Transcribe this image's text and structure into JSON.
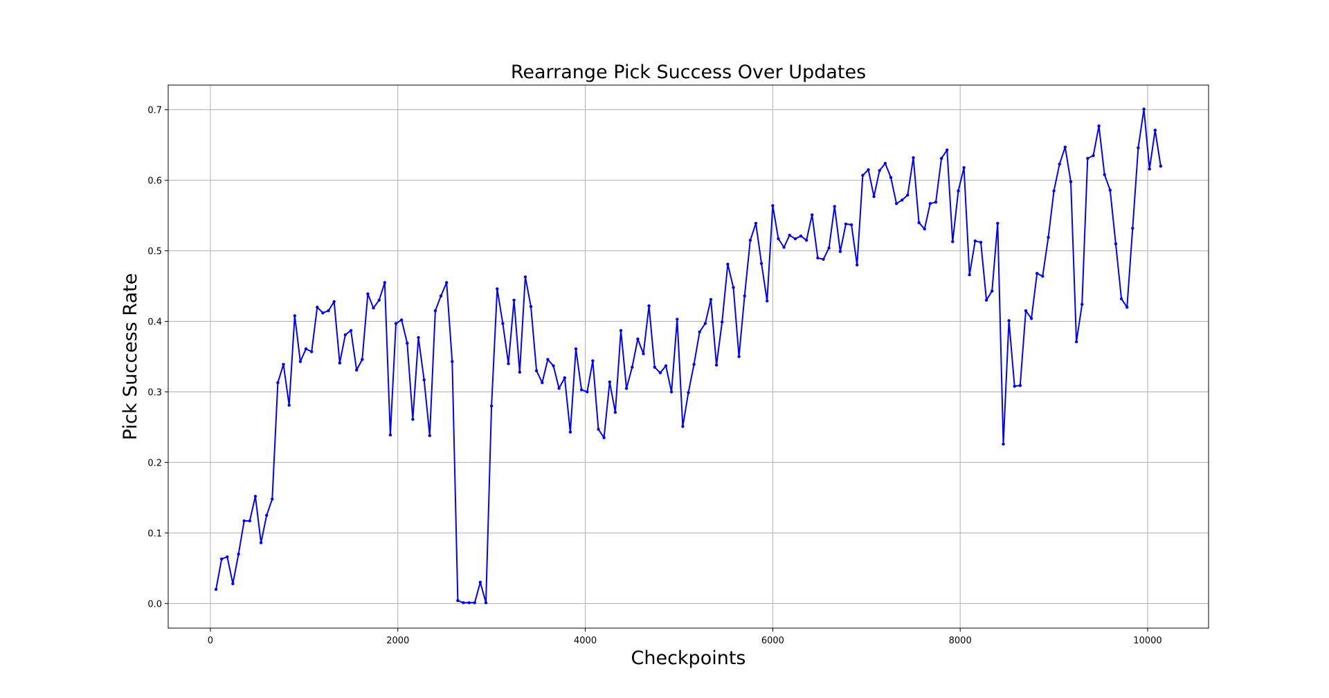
{
  "chart_data": {
    "type": "line",
    "title": "Rearrange Pick Success Over Updates",
    "xlabel": "Checkpoints",
    "ylabel": "Pick Success Rate",
    "xlim": [
      -450,
      10650
    ],
    "ylim": [
      -0.035,
      0.735
    ],
    "x_ticks": [
      0,
      2000,
      4000,
      6000,
      8000,
      10000
    ],
    "y_ticks": [
      0.0,
      0.1,
      0.2,
      0.3,
      0.4,
      0.5,
      0.6,
      0.7
    ],
    "x_tick_labels": [
      "0",
      "2000",
      "4000",
      "6000",
      "8000",
      "10000"
    ],
    "y_tick_labels": [
      "0.0",
      "0.1",
      "0.2",
      "0.3",
      "0.4",
      "0.5",
      "0.6",
      "0.7"
    ],
    "grid": true,
    "series": [
      {
        "color": "#0000ff",
        "marker": "dot",
        "x": [
          60,
          120,
          180,
          240,
          300,
          360,
          420,
          480,
          540,
          600,
          660,
          720,
          780,
          840,
          900,
          960,
          1020,
          1080,
          1140,
          1200,
          1260,
          1320,
          1380,
          1440,
          1500,
          1560,
          1620,
          1680,
          1740,
          1800,
          1860,
          1920,
          1980,
          2040,
          2100,
          2160,
          2220,
          2280,
          2340,
          2400,
          2460,
          2520,
          2580,
          2640,
          2700,
          2760,
          2820,
          2880,
          2940,
          3000,
          3060,
          3120,
          3180,
          3240,
          3300,
          3360,
          3420,
          3480,
          3540,
          3600,
          3660,
          3720,
          3780,
          3840,
          3900,
          3960,
          4020,
          4080,
          4140,
          4200,
          4260,
          4320,
          4380,
          4440,
          4500,
          4560,
          4620,
          4680,
          4740,
          4800,
          4860,
          4920,
          4980,
          5040,
          5100,
          5160,
          5220,
          5280,
          5340,
          5400,
          5460,
          5520,
          5580,
          5640,
          5700,
          5760,
          5820,
          5880,
          5940,
          6000,
          6060,
          6120,
          6180,
          6240,
          6300,
          6360,
          6420,
          6480,
          6540,
          6600,
          6660,
          6720,
          6780,
          6840,
          6900,
          6960,
          7020,
          7080,
          7140,
          7200,
          7260,
          7320,
          7380,
          7440,
          7500,
          7560,
          7620,
          7680,
          7740,
          7800,
          7860,
          7920,
          7980,
          8040,
          8100,
          8160,
          8220,
          8280,
          8340,
          8400,
          8460,
          8520,
          8580,
          8640,
          8700,
          8760,
          8820,
          8880,
          8940,
          9000,
          9060,
          9120,
          9180,
          9240,
          9300,
          9360,
          9420,
          9480,
          9540,
          9600,
          9660,
          9720,
          9780,
          9840,
          9900,
          9960,
          10020,
          10080,
          10140
        ],
        "y": [
          0.02,
          0.063,
          0.066,
          0.028,
          0.07,
          0.117,
          0.117,
          0.152,
          0.086,
          0.125,
          0.148,
          0.313,
          0.339,
          0.281,
          0.408,
          0.343,
          0.361,
          0.357,
          0.42,
          0.412,
          0.415,
          0.428,
          0.341,
          0.381,
          0.387,
          0.331,
          0.346,
          0.439,
          0.419,
          0.43,
          0.455,
          0.239,
          0.397,
          0.402,
          0.369,
          0.261,
          0.377,
          0.317,
          0.238,
          0.415,
          0.436,
          0.455,
          0.343,
          0.004,
          0.001,
          0.001,
          0.001,
          0.03,
          0.001,
          0.28,
          0.446,
          0.397,
          0.34,
          0.43,
          0.328,
          0.463,
          0.421,
          0.33,
          0.313,
          0.346,
          0.337,
          0.305,
          0.32,
          0.243,
          0.361,
          0.303,
          0.3,
          0.344,
          0.247,
          0.235,
          0.314,
          0.271,
          0.387,
          0.305,
          0.335,
          0.375,
          0.354,
          0.422,
          0.335,
          0.327,
          0.337,
          0.3,
          0.403,
          0.251,
          0.299,
          0.339,
          0.385,
          0.397,
          0.431,
          0.338,
          0.399,
          0.481,
          0.448,
          0.35,
          0.436,
          0.515,
          0.539,
          0.482,
          0.429,
          0.564,
          0.517,
          0.505,
          0.522,
          0.517,
          0.521,
          0.515,
          0.551,
          0.49,
          0.488,
          0.504,
          0.563,
          0.499,
          0.538,
          0.537,
          0.48,
          0.607,
          0.615,
          0.577,
          0.614,
          0.624,
          0.604,
          0.567,
          0.572,
          0.579,
          0.632,
          0.54,
          0.531,
          0.567,
          0.569,
          0.631,
          0.643,
          0.513,
          0.585,
          0.618,
          0.466,
          0.514,
          0.512,
          0.43,
          0.443,
          0.539,
          0.226,
          0.401,
          0.308,
          0.309,
          0.415,
          0.404,
          0.468,
          0.464,
          0.519,
          0.585,
          0.623,
          0.647,
          0.598,
          0.371,
          0.424,
          0.631,
          0.635,
          0.677,
          0.608,
          0.586,
          0.51,
          0.432,
          0.42,
          0.532,
          0.646,
          0.701,
          0.616,
          0.671,
          0.62
        ]
      }
    ]
  }
}
